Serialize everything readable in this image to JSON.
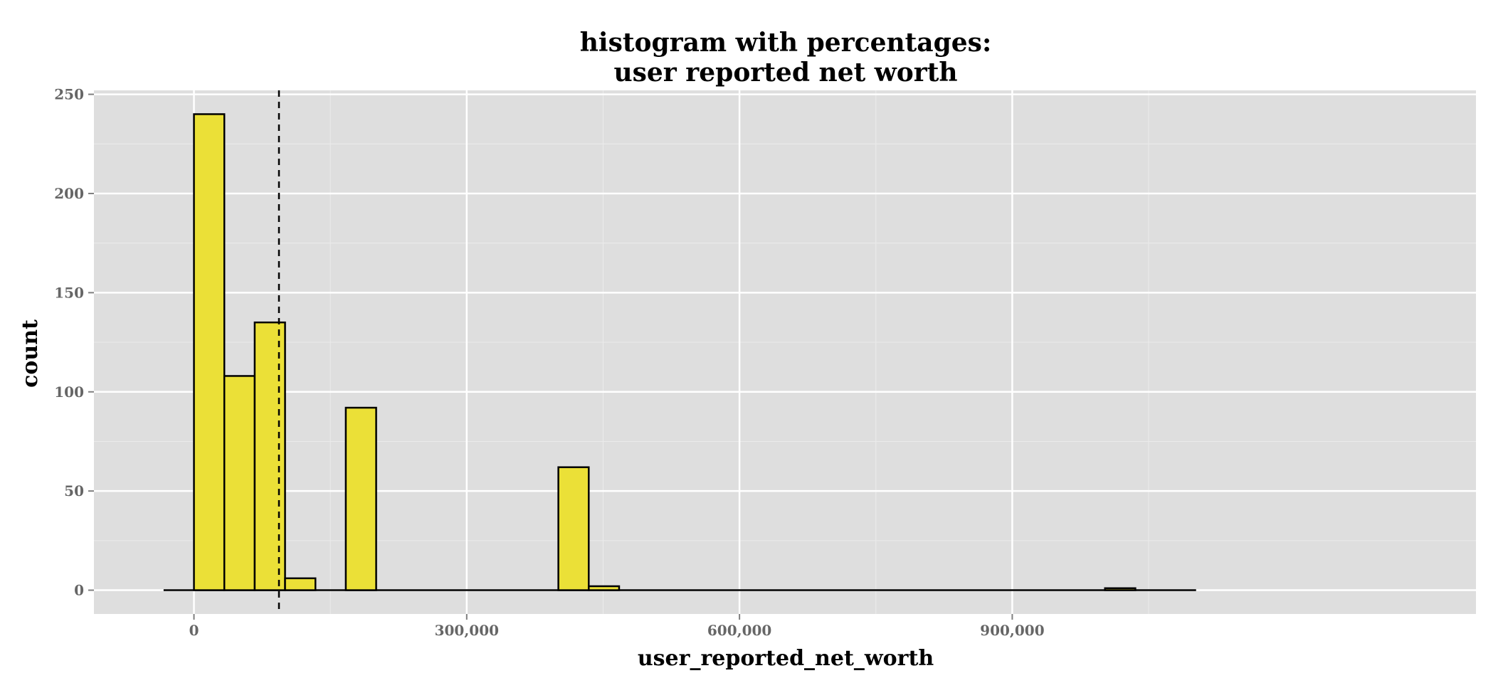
{
  "chart_data": {
    "type": "bar",
    "title": {
      "line1": "histogram with percentages:",
      "line2": "user reported net worth"
    },
    "xlabel": "user_reported_net_worth",
    "ylabel": "count",
    "xlim": [
      -110000,
      1410000
    ],
    "ylim": [
      -12,
      252
    ],
    "x_ticks": [
      {
        "value": 0,
        "label": "0"
      },
      {
        "value": 300000,
        "label": "300,000"
      },
      {
        "value": 600000,
        "label": "600,000"
      },
      {
        "value": 900000,
        "label": "900,000"
      }
    ],
    "y_ticks": [
      {
        "value": 0,
        "label": "0"
      },
      {
        "value": 50,
        "label": "50"
      },
      {
        "value": 100,
        "label": "100"
      },
      {
        "value": 150,
        "label": "150"
      },
      {
        "value": 200,
        "label": "200"
      },
      {
        "value": 250,
        "label": "250"
      }
    ],
    "bin_width": 33400,
    "bins_start": -33400,
    "bins_end": 1102200,
    "bars": [
      {
        "x0": 0,
        "x1": 33400,
        "count": 240
      },
      {
        "x0": 33400,
        "x1": 66800,
        "count": 108
      },
      {
        "x0": 66800,
        "x1": 100200,
        "count": 135
      },
      {
        "x0": 100200,
        "x1": 133600,
        "count": 6
      },
      {
        "x0": 167000,
        "x1": 200400,
        "count": 92
      },
      {
        "x0": 400800,
        "x1": 434200,
        "count": 62
      },
      {
        "x0": 434200,
        "x1": 467600,
        "count": 2
      },
      {
        "x0": 1002000,
        "x1": 1035400,
        "count": 1
      }
    ],
    "mean_line": 93500,
    "grid": true,
    "colors": {
      "bar_fill": "#ebe037",
      "bar_outline": "#000000",
      "panel_background": "#dedede",
      "grid_major": "#ffffff",
      "grid_minor": "#ebebeb",
      "tick_label": "#666666"
    }
  }
}
